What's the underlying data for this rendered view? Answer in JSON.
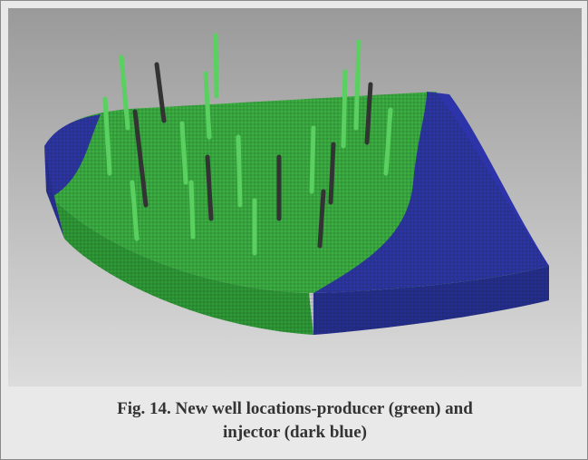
{
  "caption": {
    "lines": [
      "Fig. 14. New well locations-producer (green) and",
      "injector (dark blue)"
    ]
  }
}
